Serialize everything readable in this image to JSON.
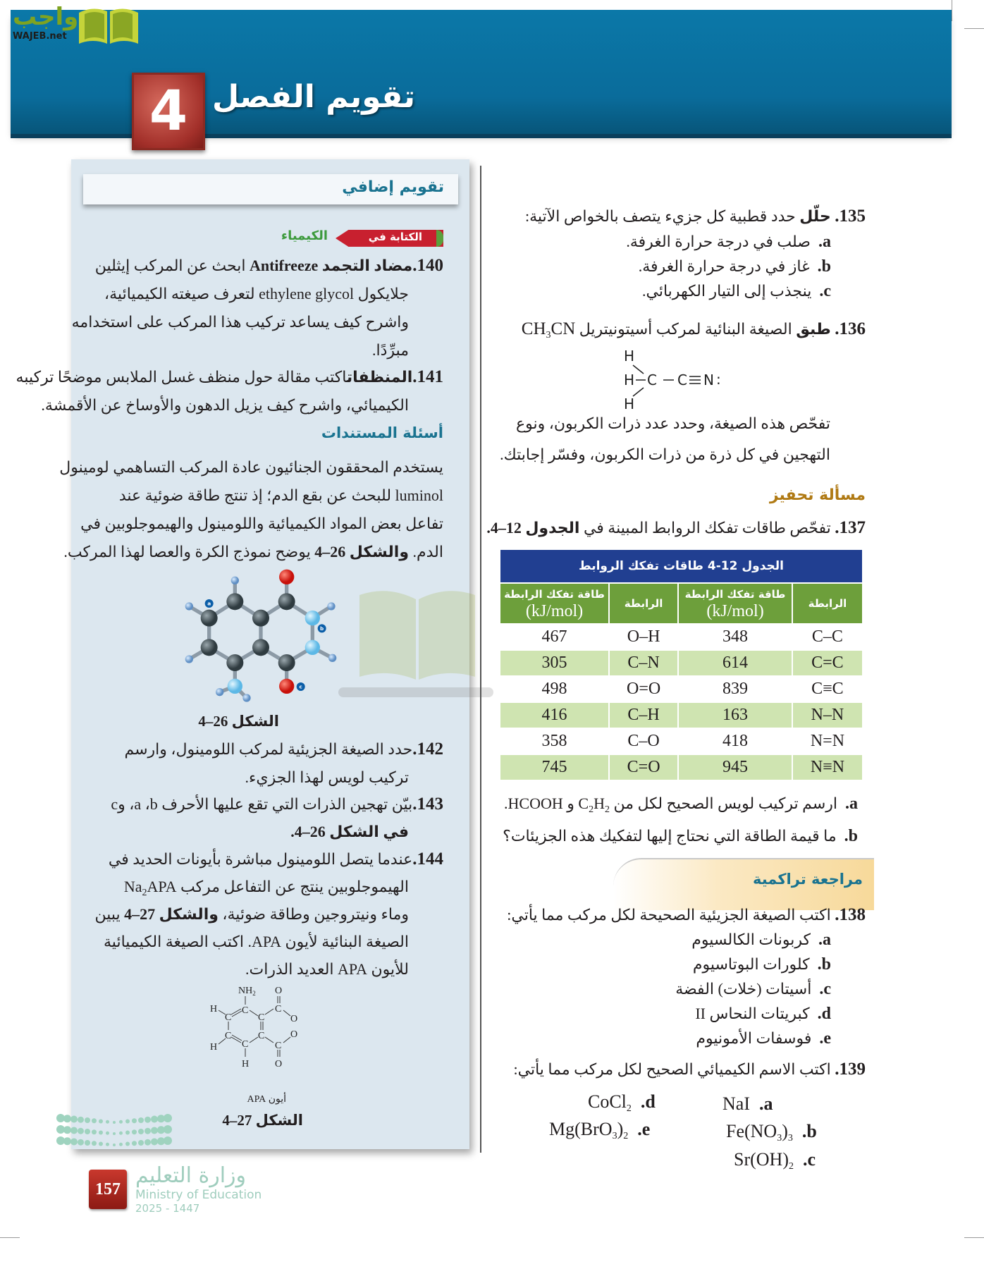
{
  "logo": {
    "arabic": "واجب",
    "latin": "WAJEB.net"
  },
  "header": {
    "chapter_number": "4",
    "title": "تقويم الفصل",
    "band_color": "#0a6c9b"
  },
  "left": {
    "section_title": "تقويم إضافي",
    "writing_tag": {
      "label": "الكتابة في",
      "subject": "الكيمياء"
    },
    "q140": {
      "num": "140.",
      "bold": "مضاد التجمد Antifreeze",
      "line1": "ابحث عن المركب إيثلين",
      "lines": [
        "جلايكول ethylene glycol لتعرف صيغته الكيميائية،",
        "واشرح كيف يساعد تركيب هذا المركب على استخدامه",
        "مبرِّدًا."
      ]
    },
    "q141": {
      "num": "141.",
      "bold": "المنظفات",
      "line1": "اكتب مقالة حول منظف غسل الملابس موضحًا تركيبه",
      "lines": [
        "الكيميائي، واشرح كيف يزيل الدهون والأوساخ عن الأقمشة."
      ]
    },
    "documents_title": "أسئلة المستندات",
    "documents_paragraph": [
      "يستخدم المحققون الجنائيون عادة المركب التساهمي لومينول",
      "luminol للبحث عن بقع الدم؛ إذ تنتج طاقة ضوئية عند",
      "تفاعل بعض المواد الكيميائية واللومينول والهيموجلوبين في"
    ],
    "documents_last": {
      "pre": "الدم.",
      "bold": "والشكل 26–4",
      "post": "يوضح نموذج الكرة والعصا لهذا المركب."
    },
    "figure26": {
      "labels": [
        "a",
        "b",
        "c"
      ],
      "caption": "الشكل 26–4"
    },
    "q142": {
      "num": "142.",
      "line1": "حدد الصيغة الجزيئية لمركب اللومينول، وارسم",
      "lines": [
        "تركيب لويس لهذا الجزيء."
      ]
    },
    "q143": {
      "num": "143.",
      "line1": "بيّن تهجين الذرات التي تقع عليها الأحرف a ،b، وc",
      "line2": "في الشكل 26–4."
    },
    "q144": {
      "num": "144.",
      "line1": "عندما يتصل اللومينول مباشرة بأيونات الحديد في",
      "line2_pre": "الهيموجلوبين ينتج عن التفاعل مركب Na",
      "line2_sub": "2",
      "line2_post": "APA",
      "line3_pre": "وماء ونيتروجين وطاقة ضوئية،",
      "line3_bold": "والشكل 27–4",
      "line3_post": "يبين",
      "lines": [
        "الصيغة البنائية لأيون APA. اكتب الصيغة الكيميائية",
        "للأيون APA العديد الذرات."
      ]
    },
    "figure27": {
      "atoms": {
        "nh2": "NH",
        "nh2_sub": "2",
        "o": "O",
        "o_minus": "O",
        "c": "C",
        "h": "H"
      },
      "label": "أيون APA",
      "caption": "الشكل 27–4"
    }
  },
  "right": {
    "q135": {
      "num": "135.",
      "bold": "حلّل",
      "text": "حدد قطبية كل جزيء يتصف بالخواص الآتية:",
      "items": [
        {
          "letter": "a.",
          "text": "صلب في درجة حرارة الغرفة."
        },
        {
          "letter": "b.",
          "text": "غاز في درجة حرارة الغرفة."
        },
        {
          "letter": "c.",
          "text": "ينجذب إلى التيار الكهربائي."
        }
      ]
    },
    "q136": {
      "num": "136.",
      "bold": "طبق",
      "text": "الصيغة البنائية لمركب أسيتونيتريل",
      "formula": "CH",
      "formula_sub": "3",
      "formula_end": "CN",
      "lewis": {
        "h": "H",
        "c": "C",
        "n": "N",
        "lone_pair": ":"
      },
      "lines": [
        "تفحّص هذه الصيغة، وحدد عدد ذرات الكربون، ونوع",
        "التهجين في كل ذرة من ذرات الكربون، وفسّر إجابتك."
      ]
    },
    "challenge_title": "مسألة تحفيز",
    "q137": {
      "num": "137.",
      "text": "تفحّص طاقات تفكك الروابط المبينة في",
      "bold": "الجدول 12–4.",
      "table": {
        "caption": "الجدول 12-4 طاقات تفكك الروابط",
        "col_bond": "الرابطة",
        "col_energy": "طاقة تفكك الرابطة",
        "unit": "(kJ/mol)",
        "rows": [
          [
            "C–C",
            "348",
            "O–H",
            "467"
          ],
          [
            "C=C",
            "614",
            "C–N",
            "305"
          ],
          [
            "C≡C",
            "839",
            "O=O",
            "498"
          ],
          [
            "N–N",
            "163",
            "C–H",
            "416"
          ],
          [
            "N=N",
            "418",
            "C–O",
            "358"
          ],
          [
            "N≡N",
            "945",
            "C=O",
            "745"
          ]
        ]
      },
      "a": {
        "letter": "a.",
        "pre": "ارسم تركيب لويس الصحيح لكل من C",
        "s1": "2",
        "mid": "H",
        "s2": "2",
        "post": " و HCOOH."
      },
      "b": {
        "letter": "b.",
        "text": "ما قيمة الطاقة التي نحتاج إليها لتفكيك هذه الجزيئات؟"
      }
    },
    "review_title": "مراجعة تراكمية",
    "q138": {
      "num": "138.",
      "text": "اكتب الصيغة الجزيئية الصحيحة لكل مركب مما يأتي:",
      "items": [
        {
          "letter": "a.",
          "text": "كربونات الكالسيوم"
        },
        {
          "letter": "b.",
          "text": "كلورات البوتاسيوم"
        },
        {
          "letter": "c.",
          "text": "أسيتات (خلات) الفضة"
        },
        {
          "letter": "d.",
          "text": "كبريتات النحاس II"
        },
        {
          "letter": "e.",
          "text": "فوسفات الأمونيوم"
        }
      ]
    },
    "q139": {
      "num": "139.",
      "text": "اكتب الاسم الكيميائي الصحيح لكل مركب مما يأتي:",
      "items": {
        "a": {
          "letter": ".a",
          "f": "NaI"
        },
        "b": {
          "letter": ".b",
          "f": "Fe(NO",
          "s1": "3",
          "f2": ")",
          "s2": "3"
        },
        "c": {
          "letter": ".c",
          "f": "Sr(OH)",
          "s1": "2"
        },
        "d": {
          "letter": ".d",
          "f": "CoCl",
          "s1": "2"
        },
        "e": {
          "letter": ".e",
          "f": "Mg(BrO",
          "s1": "3",
          "f2": ")",
          "s2": "2"
        }
      }
    }
  },
  "watermark": {
    "arabic": "واجب",
    "latin": "WAJEB.net"
  },
  "footer": {
    "page_number": "157",
    "ministry_ar": "وزارة التعليم",
    "ministry_en": "Ministry of Education",
    "year": "2025 - 1447"
  },
  "colors": {
    "panel": "#dce7ef",
    "table_header": "#213f91",
    "table_colhead": "#6d9f3b",
    "table_green_row": "#cfe4b1",
    "accent_teal": "#1a7390",
    "challenge": "#b07a14"
  }
}
